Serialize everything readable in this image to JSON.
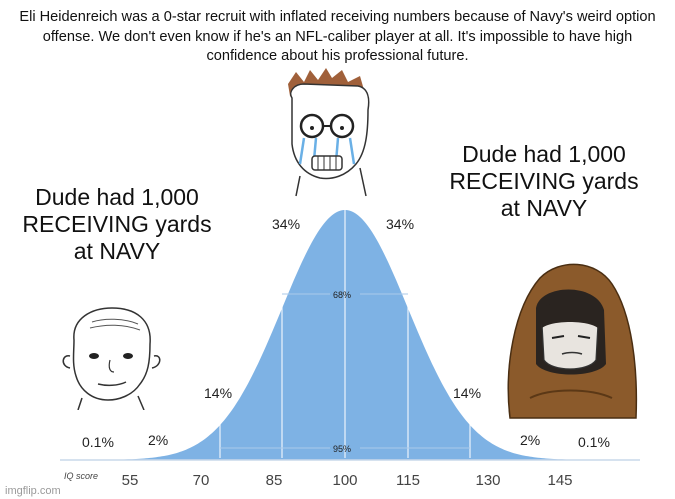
{
  "caption": "Eli Heidenreich was a 0-star recruit with inflated receiving numbers because of Navy's weird option offense. We don't even know if he's an NFL-caliber player at all. It's impossible to have high confidence about his professional future.",
  "left_text": "Dude had 1,000 RECEIVING yards at NAVY",
  "right_text": "Dude had 1,000 RECEIVING yards at NAVY",
  "chart": {
    "axis_label": "IQ score",
    "ticks": [
      "55",
      "70",
      "85",
      "100",
      "115",
      "130",
      "145"
    ],
    "percent_labels": {
      "center_left": "34%",
      "center_right": "34%",
      "mid_left": "14%",
      "mid_right": "14%",
      "tail_left": "2%",
      "tail_right": "2%",
      "far_left": "0.1%",
      "far_right": "0.1%",
      "band_68": "68%",
      "band_95": "95%"
    },
    "colors": {
      "fill": "#7eb2e4",
      "line": "#ffffff"
    }
  },
  "watermark": "imgflip.com"
}
